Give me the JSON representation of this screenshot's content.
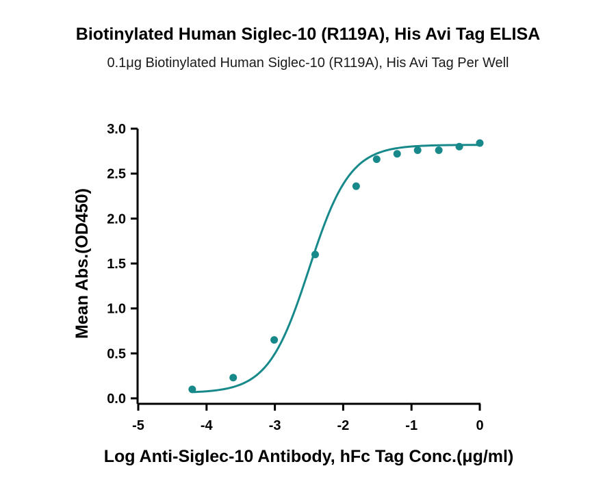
{
  "chart_data": {
    "type": "scatter",
    "title": "Biotinylated Human Siglec-10 (R119A), His Avi Tag ELISA",
    "subtitle": "0.1μg Biotinylated Human Siglec-10 (R119A), His Avi Tag Per Well",
    "xlabel": "Log Anti-Siglec-10 Antibody, hFc Tag Conc.(μg/ml)",
    "ylabel": "Mean Abs.(OD450)",
    "xlim": [
      -5,
      0
    ],
    "ylim": [
      0,
      3.0
    ],
    "x_ticks": [
      "-5",
      "-4",
      "-3",
      "-2",
      "-1",
      "0"
    ],
    "y_ticks": [
      "0.0",
      "0.5",
      "1.0",
      "1.5",
      "2.0",
      "2.5",
      "3.0"
    ],
    "grid": false,
    "color": "#17898a",
    "points": [
      {
        "x": -4.21,
        "y": 0.1
      },
      {
        "x": -3.61,
        "y": 0.23
      },
      {
        "x": -3.01,
        "y": 0.65
      },
      {
        "x": -2.41,
        "y": 1.6
      },
      {
        "x": -1.81,
        "y": 2.36
      },
      {
        "x": -1.51,
        "y": 2.66
      },
      {
        "x": -1.21,
        "y": 2.72
      },
      {
        "x": -0.91,
        "y": 2.76
      },
      {
        "x": -0.6,
        "y": 2.76
      },
      {
        "x": -0.3,
        "y": 2.8
      },
      {
        "x": 0.0,
        "y": 2.84
      }
    ],
    "fit": {
      "model": "4PL",
      "bottom": 0.06,
      "top": 2.82,
      "log_ec50": -2.5,
      "hill": 1.45
    }
  }
}
